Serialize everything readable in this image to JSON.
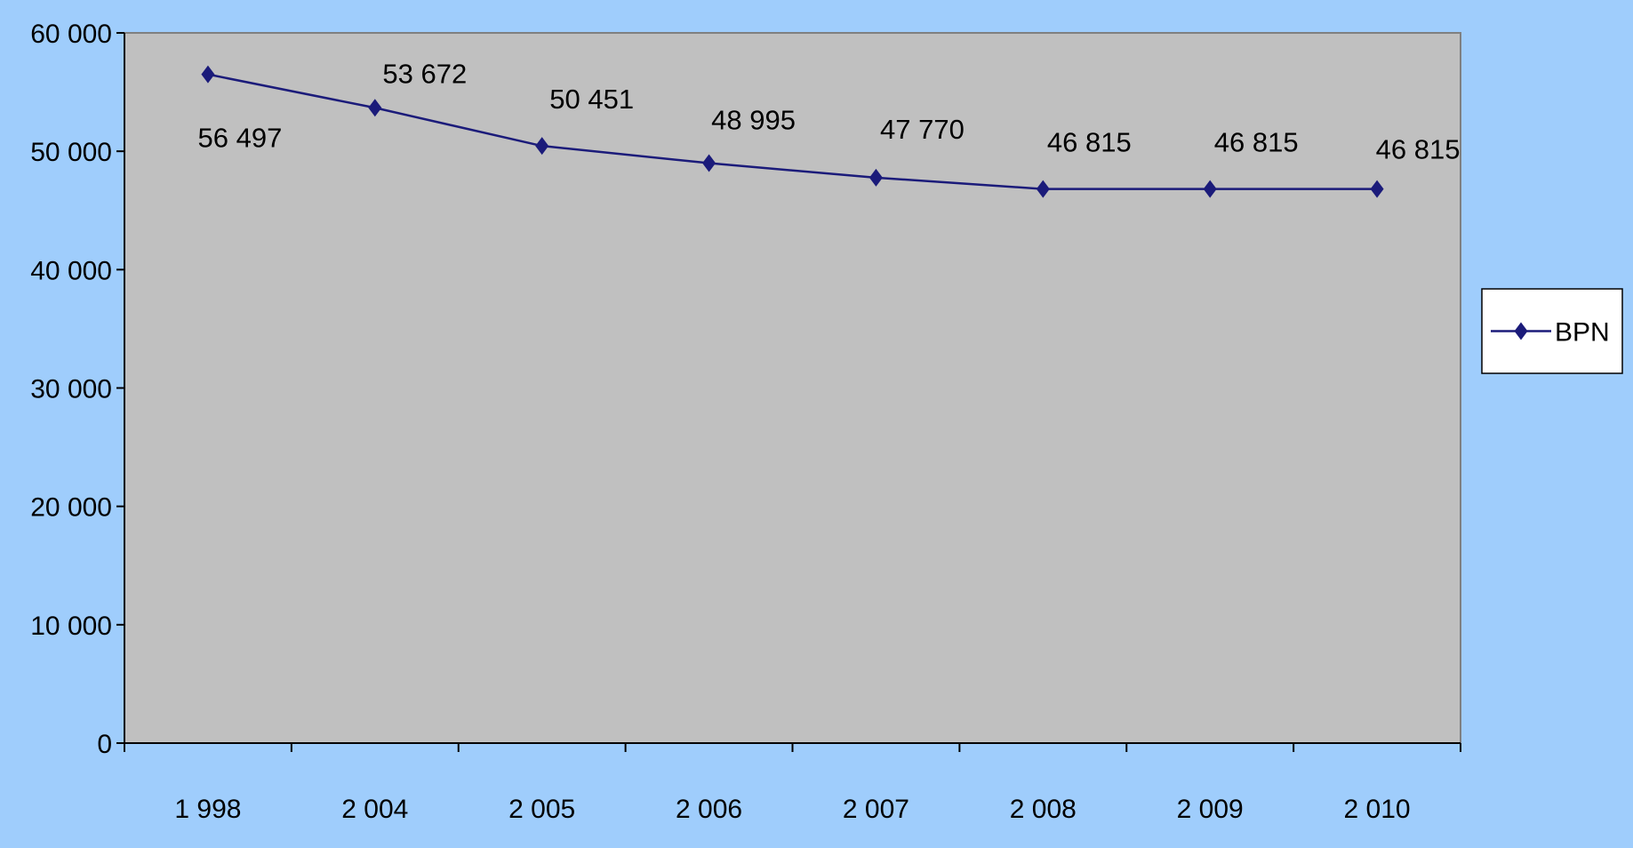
{
  "chart_data": {
    "type": "line",
    "categories": [
      "1 998",
      "2 004",
      "2 005",
      "2 006",
      "2 007",
      "2 008",
      "2 009",
      "2 010"
    ],
    "series": [
      {
        "name": "BPN",
        "values": [
          56497,
          53672,
          50451,
          48995,
          47770,
          46815,
          46815,
          46815
        ],
        "value_labels": [
          "56 497",
          "53 672",
          "50 451",
          "48 995",
          "47 770",
          "46 815",
          "46 815",
          "46 815"
        ],
        "color": "#1b1b7a",
        "marker": "diamond"
      }
    ],
    "y_ticks": [
      {
        "value": 0,
        "label": "0"
      },
      {
        "value": 10000,
        "label": "10 000"
      },
      {
        "value": 20000,
        "label": "20 000"
      },
      {
        "value": 30000,
        "label": "30 000"
      },
      {
        "value": 40000,
        "label": "40 000"
      },
      {
        "value": 50000,
        "label": "50 000"
      },
      {
        "value": 60000,
        "label": "60 000"
      }
    ],
    "ylim": [
      0,
      60000
    ],
    "title": "",
    "xlabel": "",
    "ylabel": "",
    "grid": false,
    "legend_position": "right",
    "colors": {
      "page_background": "#9fcdfc",
      "plot_background": "#c0c0c0",
      "plot_border": "#808080",
      "axis": "#000000",
      "legend_background": "#ffffff"
    }
  }
}
